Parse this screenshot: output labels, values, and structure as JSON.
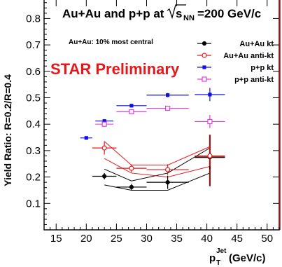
{
  "chart_data": {
    "type": "scatter",
    "title_main": "Au+Au and p+p at ",
    "title_sqrt_s": "s",
    "title_sub": "NN",
    "title_tail": "=200 GeV/c",
    "centrality_note": "Au+Au: 10% most central",
    "preliminary": "STAR Preliminary",
    "xlabel_p": "p",
    "xlabel_sup": "Jet",
    "xlabel_sub": "T",
    "xlabel_tail": " (GeV/c)",
    "ylabel": "Yield Ratio: R=0.2/R=0.4",
    "xlim": [
      13,
      52
    ],
    "ylim": [
      0.0,
      0.87
    ],
    "x_ticks": [
      15,
      20,
      25,
      30,
      35,
      40,
      45,
      50
    ],
    "x_tick_labels": [
      "15",
      "20",
      "25",
      "30",
      "35",
      "40",
      "45",
      "50"
    ],
    "y_ticks": [
      0.1,
      0.2,
      0.3,
      0.4,
      0.5,
      0.6,
      0.7,
      0.8
    ],
    "y_tick_labels": [
      "0.1",
      "0.2",
      "0.3",
      "0.4",
      "0.5",
      "0.6",
      "0.7",
      "0.8"
    ],
    "series": [
      {
        "name": "Au+Au kt",
        "color": "#000000",
        "marker": "filled-circle",
        "x": [
          23.0,
          27.5,
          33.5,
          40.5
        ],
        "xerr": [
          2.0,
          2.5,
          3.5,
          2.5
        ],
        "y": [
          0.203,
          0.162,
          0.18,
          0.275
        ],
        "yerr": [
          0.012,
          0.012,
          0.025,
          0.045
        ],
        "sys_upper": [
          0.23,
          0.185,
          0.215,
          0.31
        ],
        "sys_lower": [
          0.17,
          0.15,
          0.15,
          0.215
        ]
      },
      {
        "name": "Au+Au anti-kt",
        "color": "#e31a1c",
        "marker": "open-circle",
        "x": [
          23.0,
          27.5,
          33.5,
          40.5
        ],
        "xerr": [
          2.0,
          2.5,
          3.5,
          2.5
        ],
        "y": [
          0.31,
          0.233,
          0.228,
          0.28
        ],
        "yerr": [
          0.025,
          0.015,
          0.02,
          0.04
        ],
        "sys_upper": [
          0.335,
          0.245,
          0.245,
          0.315
        ],
        "sys_lower": [
          0.27,
          0.215,
          0.2,
          0.24
        ]
      },
      {
        "name": "p+p kt",
        "color": "#1010e0",
        "marker": "filled-square",
        "x": [
          20.0,
          23.0,
          27.5,
          33.5,
          40.5
        ],
        "xerr": [
          1.0,
          1.5,
          2.5,
          3.5,
          2.5
        ],
        "y": [
          0.348,
          0.412,
          0.47,
          0.51,
          0.512
        ],
        "yerr": [
          0.005,
          0.005,
          0.007,
          0.008,
          0.025
        ]
      },
      {
        "name": "p+p anti-kt",
        "color": "#e040e0",
        "marker": "open-square",
        "x": [
          23.0,
          27.5,
          33.5,
          40.5
        ],
        "xerr": [
          1.5,
          2.5,
          3.5,
          2.5
        ],
        "y": [
          0.4,
          0.447,
          0.46,
          0.41
        ],
        "yerr": [
          0.005,
          0.006,
          0.006,
          0.025
        ]
      }
    ],
    "sys_cross": {
      "x": 40.5,
      "y": 0.275,
      "ylow": 0.165,
      "yhigh": 0.36,
      "color": "#8b1a1a"
    },
    "legend_position": "top-right",
    "grid": false
  }
}
